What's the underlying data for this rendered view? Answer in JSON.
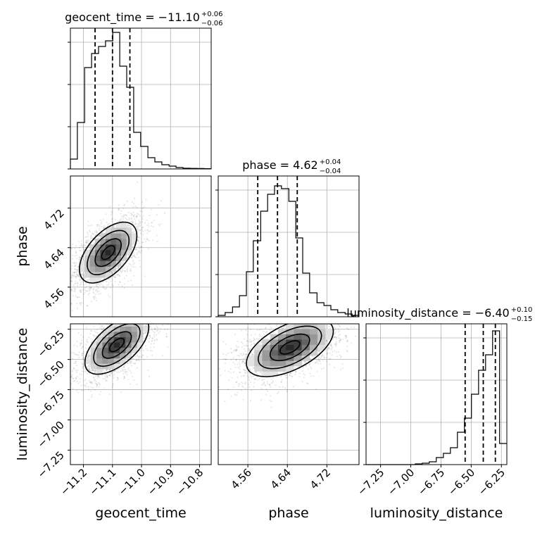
{
  "chart_data": {
    "type": "scatter",
    "subtype": "corner-plot",
    "parameters": [
      "geocent_time",
      "phase",
      "luminosity_distance"
    ],
    "ranges": {
      "geocent_time": [
        -11.245,
        -10.76
      ],
      "phase": [
        4.5,
        4.785
      ],
      "luminosity_distance": [
        -7.37,
        -6.205
      ]
    },
    "grid": true,
    "titles": [
      {
        "param": "geocent_time",
        "text": "geocent_time = −11.10",
        "sup": "+0.06",
        "sub": "−0.06"
      },
      {
        "param": "phase",
        "text": "phase = 4.62",
        "sup": "+0.04",
        "sub": "−0.04"
      },
      {
        "param": "luminosity_distance",
        "text": "luminosity_distance = −6.40",
        "sup": "+0.10",
        "sub": "−0.15"
      }
    ],
    "ticks": {
      "geocent_time": {
        "values": [
          -11.2,
          -11.1,
          -11.0,
          -10.9,
          -10.8
        ],
        "labels": [
          "−11.2",
          "−11.1",
          "−11.0",
          "−10.9",
          "−10.8"
        ]
      },
      "phase": {
        "values": [
          4.56,
          4.64,
          4.72
        ],
        "labels": [
          "4.56",
          "4.64",
          "4.72"
        ]
      },
      "luminosity_distance": {
        "values": [
          -7.25,
          -7.0,
          -6.75,
          -6.5,
          -6.25
        ],
        "labels": [
          "−7.25",
          "−7.00",
          "−6.75",
          "−6.50",
          "−6.25"
        ]
      }
    },
    "quantiles": {
      "geocent_time": [
        -11.16,
        -11.1,
        -11.04
      ],
      "phase": [
        4.58,
        4.62,
        4.66
      ],
      "luminosity_distance": [
        -6.55,
        -6.4,
        -6.3
      ]
    },
    "histograms": {
      "geocent_time": {
        "edges": [
          -11.245,
          -11.221,
          -11.196,
          -11.172,
          -11.148,
          -11.124,
          -11.099,
          -11.075,
          -11.051,
          -11.027,
          -11.003,
          -10.978,
          -10.954,
          -10.93,
          -10.905,
          -10.881,
          -10.857,
          -10.833,
          -10.808,
          -10.784,
          -10.76
        ],
        "counts": [
          0.07,
          0.33,
          0.72,
          0.82,
          0.87,
          0.91,
          0.97,
          0.73,
          0.58,
          0.26,
          0.16,
          0.08,
          0.05,
          0.03,
          0.02,
          0.01,
          0.005,
          0.004,
          0.003,
          0.002
        ]
      },
      "phase": {
        "edges": [
          4.5,
          4.514,
          4.529,
          4.543,
          4.557,
          4.571,
          4.586,
          4.6,
          4.614,
          4.628,
          4.643,
          4.657,
          4.671,
          4.685,
          4.7,
          4.714,
          4.728,
          4.742,
          4.757,
          4.771,
          4.785
        ],
        "counts": [
          0.01,
          0.03,
          0.07,
          0.15,
          0.32,
          0.54,
          0.75,
          0.87,
          0.93,
          0.91,
          0.82,
          0.56,
          0.31,
          0.17,
          0.1,
          0.08,
          0.05,
          0.03,
          0.02,
          0.01
        ]
      },
      "luminosity_distance": {
        "edges": [
          -7.37,
          -7.312,
          -7.254,
          -7.196,
          -7.138,
          -7.08,
          -7.021,
          -6.963,
          -6.905,
          -6.847,
          -6.789,
          -6.73,
          -6.672,
          -6.614,
          -6.556,
          -6.498,
          -6.439,
          -6.381,
          -6.323,
          -6.265,
          -6.207
        ],
        "counts": [
          0.0,
          0.0,
          0.0,
          0.0,
          0.0,
          0.0,
          0.0,
          0.005,
          0.01,
          0.02,
          0.05,
          0.08,
          0.12,
          0.23,
          0.33,
          0.5,
          0.67,
          0.78,
          0.95,
          0.15
        ]
      }
    },
    "joint": [
      {
        "x": "geocent_time",
        "y": "phase",
        "mean": [
          -11.115,
          4.63
        ],
        "sd": [
          0.045,
          0.028
        ],
        "corr": 0.55
      },
      {
        "x": "geocent_time",
        "y": "luminosity_distance",
        "mean": [
          -11.085,
          -6.38
        ],
        "sd": [
          0.05,
          0.11
        ],
        "corr": 0.6
      },
      {
        "x": "phase",
        "y": "luminosity_distance",
        "mean": [
          4.645,
          -6.4
        ],
        "sd": [
          0.04,
          0.11
        ],
        "corr": 0.55
      }
    ]
  }
}
